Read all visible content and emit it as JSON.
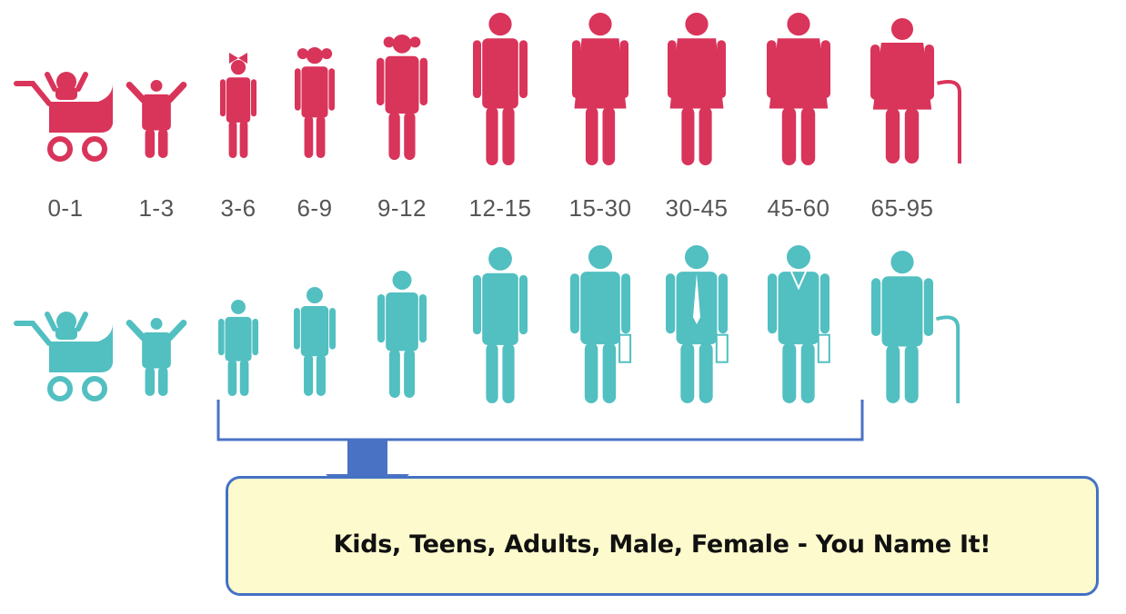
{
  "colors": {
    "female": "#d9345a",
    "male": "#52bfc1",
    "bracket": "#4a72c4",
    "arrow": "#4a72c4",
    "callout_fill": "#fdfbcd",
    "callout_border": "#4472c4"
  },
  "age_groups": [
    "0-1",
    "1-3",
    "3-6",
    "6-9",
    "9-12",
    "12-15",
    "15-30",
    "30-45",
    "45-60",
    "65-95"
  ],
  "female_figures": [
    "baby-stroller-icon",
    "toddler-girl-icon",
    "girl-with-bow-icon",
    "girl-pigtails-icon",
    "preteen-girl-icon",
    "teen-girl-icon",
    "young-woman-icon",
    "woman-icon",
    "middle-aged-woman-icon",
    "elderly-woman-with-cane-icon"
  ],
  "male_figures": [
    "baby-stroller-icon",
    "toddler-boy-icon",
    "boy-icon",
    "boy-icon",
    "preteen-boy-icon",
    "teen-boy-icon",
    "young-man-with-briefcase-icon",
    "man-with-tie-briefcase-icon",
    "man-in-suit-briefcase-icon",
    "elderly-man-with-cane-icon"
  ],
  "callout": {
    "text": "Kids, Teens, Adults, Male, Female - You Name It!",
    "arrow_icon": "arrow-down-icon"
  }
}
